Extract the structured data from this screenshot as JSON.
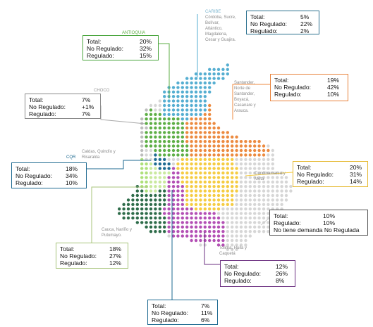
{
  "regions": {
    "caribe": {
      "title": "CARIBE",
      "subtitle_lines": [
        "Córdoba, Sucre,",
        "Bolívar,",
        "Atlántico,",
        "Magdalena,",
        "Cesar y Guajira."
      ],
      "color": "#55aed1",
      "stats": [
        {
          "label": "Total:",
          "value": "5%"
        },
        {
          "label": "No Regulado:",
          "value": "22%"
        },
        {
          "label": "Regulado:",
          "value": "2%"
        }
      ]
    },
    "antioquia": {
      "title": "ANTIOQUIA",
      "color": "#5dae45",
      "stats": [
        {
          "label": "Total:",
          "value": "20%"
        },
        {
          "label": "No Regulado:",
          "value": "32%"
        },
        {
          "label": "Regulado:",
          "value": "15%"
        }
      ]
    },
    "choco": {
      "title": "CHOCO",
      "color": "#a0a0a0",
      "stats": [
        {
          "label": "Total:",
          "value": "7%"
        },
        {
          "label": "No Regulado:",
          "value": "+1%"
        },
        {
          "label": "Regulado:",
          "value": "7%"
        }
      ]
    },
    "santander": {
      "title_lines": [
        "Santander,",
        "Norte de",
        "Santander,",
        "Boyacá,",
        "Casanare y",
        "Arauca."
      ],
      "color": "#ec8a3f",
      "stats": [
        {
          "label": "Total:",
          "value": "19%"
        },
        {
          "label": "No Regulado:",
          "value": "42%"
        },
        {
          "label": "Regulado:",
          "value": "10%"
        }
      ]
    },
    "cqr": {
      "title": "CQR",
      "subtitle_lines": [
        "Caldas, Quindío y",
        "Risaralda"
      ],
      "color": "#1e6a91",
      "stats": [
        {
          "label": "Total:",
          "value": "18%"
        },
        {
          "label": "No Regulado:",
          "value": "34%"
        },
        {
          "label": "Regulado:",
          "value": "10%"
        }
      ]
    },
    "cundinamarca": {
      "title_lines": [
        "Cundinamarca y",
        "Meta"
      ],
      "color": "#f5cc42",
      "stats": [
        {
          "label": "Total:",
          "value": "20%"
        },
        {
          "label": "No Regulado:",
          "value": "31%"
        },
        {
          "label": "Regulado:",
          "value": "14%"
        }
      ]
    },
    "oriente": {
      "color": "#d6d6d6",
      "stats": [
        {
          "label": "Total:",
          "value": "10%"
        },
        {
          "label": "Regulado:",
          "value": "10%"
        },
        {
          "label": "No tiene demanda No Regulada",
          "value": ""
        }
      ]
    },
    "cauca": {
      "title_lines": [
        "Cauca, Nariño y",
        "Putumayo."
      ],
      "color": "#2d6b49",
      "stats": [
        {
          "label": "Total:",
          "value": "18%"
        },
        {
          "label": "No Regulado:",
          "value": "27%"
        },
        {
          "label": "Regulado:",
          "value": "12%"
        }
      ]
    },
    "tolima": {
      "title_lines": [
        "Tolima, Huila y",
        "Caquetá"
      ],
      "color": "#b34fb4",
      "stats": [
        {
          "label": "Total:",
          "value": "12%"
        },
        {
          "label": "No Regulado:",
          "value": "26%"
        },
        {
          "label": "Regulado:",
          "value": "8%"
        }
      ]
    },
    "valle": {
      "color": "#aee07a",
      "stats": [
        {
          "label": "Total:",
          "value": "7%"
        },
        {
          "label": "No Regulado:",
          "value": "11%"
        },
        {
          "label": "Regulado:",
          "value": "6%"
        }
      ]
    }
  }
}
